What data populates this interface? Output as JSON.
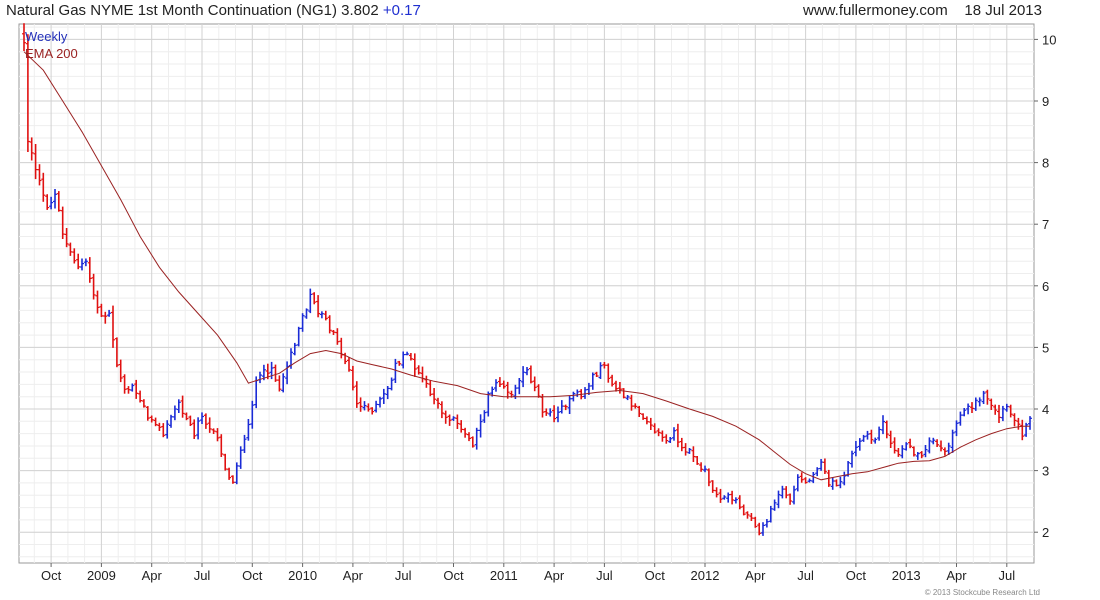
{
  "header": {
    "title": "Natural Gas NYME 1st Month Continuation (NG1)",
    "price": "3.802",
    "change": "+0.17",
    "website": "www.fullermoney.com",
    "date": "18 Jul 2013"
  },
  "legend": {
    "weekly": "Weekly",
    "ema": "EMA 200"
  },
  "copyright": "© 2013 Stockcube Research Ltd",
  "colors": {
    "up": "#1a2bd6",
    "down": "#e01010",
    "ema": "#9a2222",
    "grid": "#d8d8d8"
  },
  "chart_data": {
    "type": "candlestick",
    "title": "Natural Gas NYME 1st Month Continuation (NG1)",
    "timeframe": "Weekly",
    "ylim": [
      1.5,
      10.25
    ],
    "y_ticks": [
      2,
      3,
      4,
      5,
      6,
      7,
      8,
      9,
      10
    ],
    "y_axis_position": "right",
    "x_labels": [
      "Oct",
      "2009",
      "Apr",
      "Jul",
      "Oct",
      "2010",
      "Apr",
      "Jul",
      "Oct",
      "2011",
      "Apr",
      "Jul",
      "Oct",
      "2012",
      "Apr",
      "Jul",
      "Oct",
      "2013",
      "Apr",
      "Jul"
    ],
    "x_range_weeks": [
      0,
      260
    ],
    "x_label_weeks": [
      7,
      20,
      33,
      46,
      59,
      72,
      85,
      98,
      111,
      124,
      137,
      150,
      163,
      176,
      189,
      202,
      215,
      228,
      241,
      254
    ],
    "grid": true,
    "legend_position": "top-left",
    "close_path": [
      [
        0,
        9.9
      ],
      [
        1,
        8.3
      ],
      [
        2,
        8.1
      ],
      [
        4,
        7.8
      ],
      [
        6,
        7.2
      ],
      [
        8,
        7.5
      ],
      [
        10,
        6.8
      ],
      [
        12,
        6.6
      ],
      [
        14,
        6.3
      ],
      [
        16,
        6.4
      ],
      [
        18,
        5.8
      ],
      [
        20,
        5.5
      ],
      [
        22,
        5.6
      ],
      [
        24,
        4.7
      ],
      [
        26,
        4.3
      ],
      [
        28,
        4.4
      ],
      [
        30,
        4.1
      ],
      [
        32,
        3.9
      ],
      [
        34,
        3.7
      ],
      [
        36,
        3.6
      ],
      [
        38,
        3.9
      ],
      [
        40,
        4.1
      ],
      [
        42,
        3.8
      ],
      [
        44,
        3.6
      ],
      [
        46,
        3.9
      ],
      [
        48,
        3.7
      ],
      [
        50,
        3.5
      ],
      [
        52,
        3.0
      ],
      [
        54,
        2.8
      ],
      [
        56,
        3.3
      ],
      [
        58,
        3.8
      ],
      [
        60,
        4.4
      ],
      [
        62,
        4.7
      ],
      [
        64,
        4.6
      ],
      [
        66,
        4.3
      ],
      [
        68,
        4.7
      ],
      [
        70,
        5.0
      ],
      [
        72,
        5.5
      ],
      [
        74,
        5.8
      ],
      [
        76,
        5.6
      ],
      [
        78,
        5.5
      ],
      [
        80,
        5.2
      ],
      [
        82,
        4.9
      ],
      [
        84,
        4.6
      ],
      [
        86,
        4.1
      ],
      [
        88,
        4.0
      ],
      [
        90,
        4.0
      ],
      [
        92,
        4.2
      ],
      [
        94,
        4.3
      ],
      [
        96,
        4.7
      ],
      [
        98,
        4.9
      ],
      [
        100,
        4.8
      ],
      [
        102,
        4.6
      ],
      [
        104,
        4.4
      ],
      [
        106,
        4.2
      ],
      [
        108,
        3.9
      ],
      [
        110,
        3.8
      ],
      [
        112,
        3.8
      ],
      [
        114,
        3.6
      ],
      [
        116,
        3.4
      ],
      [
        118,
        3.8
      ],
      [
        120,
        4.2
      ],
      [
        122,
        4.4
      ],
      [
        124,
        4.3
      ],
      [
        126,
        4.2
      ],
      [
        128,
        4.5
      ],
      [
        130,
        4.6
      ],
      [
        132,
        4.3
      ],
      [
        134,
        4.0
      ],
      [
        136,
        3.9
      ],
      [
        138,
        3.9
      ],
      [
        140,
        4.1
      ],
      [
        142,
        4.3
      ],
      [
        144,
        4.2
      ],
      [
        146,
        4.4
      ],
      [
        148,
        4.6
      ],
      [
        150,
        4.7
      ],
      [
        152,
        4.4
      ],
      [
        154,
        4.3
      ],
      [
        156,
        4.2
      ],
      [
        158,
        4.0
      ],
      [
        160,
        3.8
      ],
      [
        162,
        3.7
      ],
      [
        164,
        3.6
      ],
      [
        166,
        3.5
      ],
      [
        168,
        3.6
      ],
      [
        170,
        3.4
      ],
      [
        172,
        3.3
      ],
      [
        174,
        3.1
      ],
      [
        176,
        3.0
      ],
      [
        178,
        2.7
      ],
      [
        180,
        2.5
      ],
      [
        182,
        2.6
      ],
      [
        184,
        2.5
      ],
      [
        186,
        2.3
      ],
      [
        188,
        2.2
      ],
      [
        190,
        2.0
      ],
      [
        192,
        2.2
      ],
      [
        194,
        2.5
      ],
      [
        196,
        2.7
      ],
      [
        198,
        2.5
      ],
      [
        200,
        2.9
      ],
      [
        202,
        2.8
      ],
      [
        204,
        2.9
      ],
      [
        206,
        3.1
      ],
      [
        208,
        2.8
      ],
      [
        210,
        2.8
      ],
      [
        212,
        2.9
      ],
      [
        214,
        3.3
      ],
      [
        216,
        3.5
      ],
      [
        218,
        3.6
      ],
      [
        220,
        3.5
      ],
      [
        222,
        3.8
      ],
      [
        224,
        3.4
      ],
      [
        226,
        3.3
      ],
      [
        228,
        3.4
      ],
      [
        230,
        3.3
      ],
      [
        232,
        3.2
      ],
      [
        234,
        3.5
      ],
      [
        236,
        3.4
      ],
      [
        238,
        3.3
      ],
      [
        240,
        3.6
      ],
      [
        242,
        3.9
      ],
      [
        244,
        4.0
      ],
      [
        246,
        4.1
      ],
      [
        248,
        4.3
      ],
      [
        250,
        4.1
      ],
      [
        252,
        3.9
      ],
      [
        254,
        4.1
      ],
      [
        256,
        3.8
      ],
      [
        258,
        3.6
      ],
      [
        260,
        3.8
      ]
    ],
    "ema_path": [
      [
        0,
        9.8
      ],
      [
        5,
        9.5
      ],
      [
        10,
        9.0
      ],
      [
        15,
        8.5
      ],
      [
        20,
        7.95
      ],
      [
        25,
        7.4
      ],
      [
        30,
        6.8
      ],
      [
        35,
        6.3
      ],
      [
        40,
        5.9
      ],
      [
        45,
        5.55
      ],
      [
        50,
        5.2
      ],
      [
        55,
        4.75
      ],
      [
        58,
        4.42
      ],
      [
        62,
        4.5
      ],
      [
        66,
        4.58
      ],
      [
        70,
        4.75
      ],
      [
        74,
        4.9
      ],
      [
        78,
        4.95
      ],
      [
        82,
        4.9
      ],
      [
        86,
        4.78
      ],
      [
        90,
        4.72
      ],
      [
        95,
        4.65
      ],
      [
        100,
        4.55
      ],
      [
        106,
        4.45
      ],
      [
        112,
        4.38
      ],
      [
        118,
        4.25
      ],
      [
        124,
        4.2
      ],
      [
        130,
        4.2
      ],
      [
        136,
        4.2
      ],
      [
        142,
        4.22
      ],
      [
        148,
        4.27
      ],
      [
        154,
        4.3
      ],
      [
        160,
        4.25
      ],
      [
        166,
        4.13
      ],
      [
        172,
        4.0
      ],
      [
        178,
        3.88
      ],
      [
        184,
        3.72
      ],
      [
        190,
        3.5
      ],
      [
        194,
        3.3
      ],
      [
        198,
        3.1
      ],
      [
        202,
        2.95
      ],
      [
        206,
        2.85
      ],
      [
        210,
        2.9
      ],
      [
        214,
        2.95
      ],
      [
        218,
        2.98
      ],
      [
        222,
        3.05
      ],
      [
        226,
        3.12
      ],
      [
        230,
        3.15
      ],
      [
        234,
        3.16
      ],
      [
        238,
        3.23
      ],
      [
        242,
        3.38
      ],
      [
        246,
        3.5
      ],
      [
        250,
        3.6
      ],
      [
        254,
        3.68
      ],
      [
        258,
        3.72
      ],
      [
        260,
        3.72
      ]
    ]
  }
}
